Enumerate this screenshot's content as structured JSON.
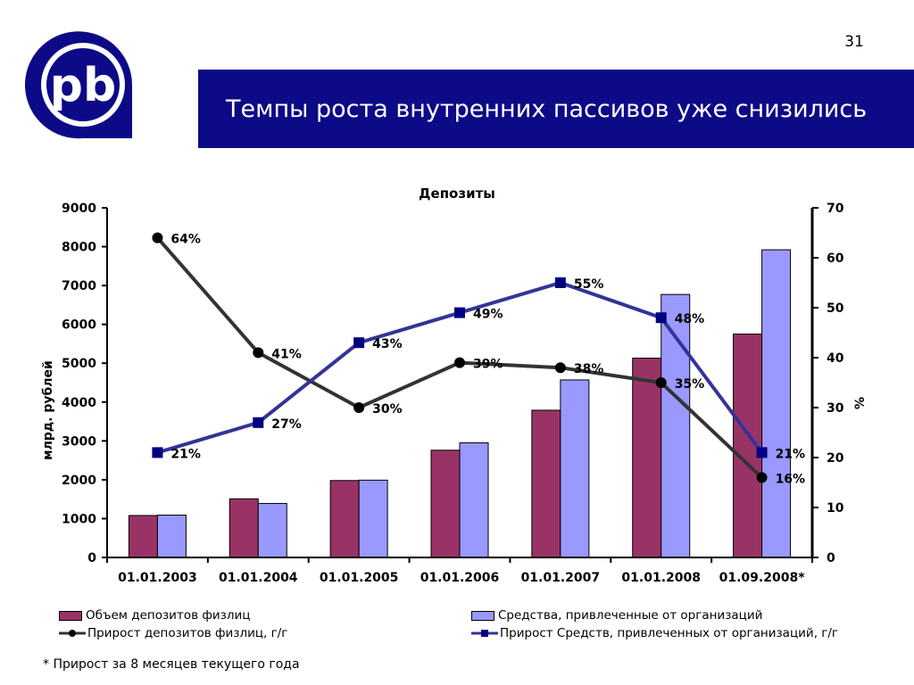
{
  "page": {
    "number": "31",
    "title": "Темпы роста внутренних пассивов уже снизились",
    "logo_text": "pb",
    "brand_color": "#0d0a87"
  },
  "chart_data": {
    "type": "bar",
    "title": "Депозиты",
    "ylabel": "млрд. рублей",
    "y2label": "%",
    "ylim": [
      0,
      9000
    ],
    "y2lim": [
      0,
      70
    ],
    "yticks": [
      0,
      1000,
      2000,
      3000,
      4000,
      5000,
      6000,
      7000,
      8000,
      9000
    ],
    "y2ticks": [
      0,
      10,
      20,
      30,
      40,
      50,
      60,
      70
    ],
    "categories": [
      "01.01.2003",
      "01.01.2004",
      "01.01.2005",
      "01.01.2006",
      "01.01.2007",
      "01.01.2008",
      "01.09.2008*"
    ],
    "series": [
      {
        "name": "Объем депозитов физлиц",
        "kind": "bar",
        "axis": "left",
        "color": "#993366",
        "values": [
          1080,
          1510,
          1980,
          2760,
          3790,
          5130,
          5750
        ]
      },
      {
        "name": "Средства, привлеченные от организаций",
        "kind": "bar",
        "axis": "left",
        "color": "#9999ff",
        "values": [
          1090,
          1390,
          1990,
          2950,
          4570,
          6770,
          7920
        ]
      },
      {
        "name": "Прирост депозитов физлиц, г/г",
        "kind": "line",
        "axis": "right",
        "color": "#333333",
        "marker": "circle",
        "values": [
          64,
          41,
          30,
          39,
          38,
          35,
          16
        ],
        "labels": [
          "64%",
          "41%",
          "30%",
          "39%",
          "38%",
          "35%",
          "16%"
        ]
      },
      {
        "name": "Прирост Средств, привлеченных от организаций, г/г",
        "kind": "line",
        "axis": "right",
        "color": "#333399",
        "marker": "square",
        "values": [
          21,
          27,
          43,
          49,
          55,
          48,
          21
        ],
        "labels": [
          "21%",
          "27%",
          "43%",
          "49%",
          "55%",
          "48%",
          "21%"
        ]
      }
    ],
    "legend_position": "bottom"
  },
  "footnote": "* Прирост за 8 месяцев текущего года"
}
